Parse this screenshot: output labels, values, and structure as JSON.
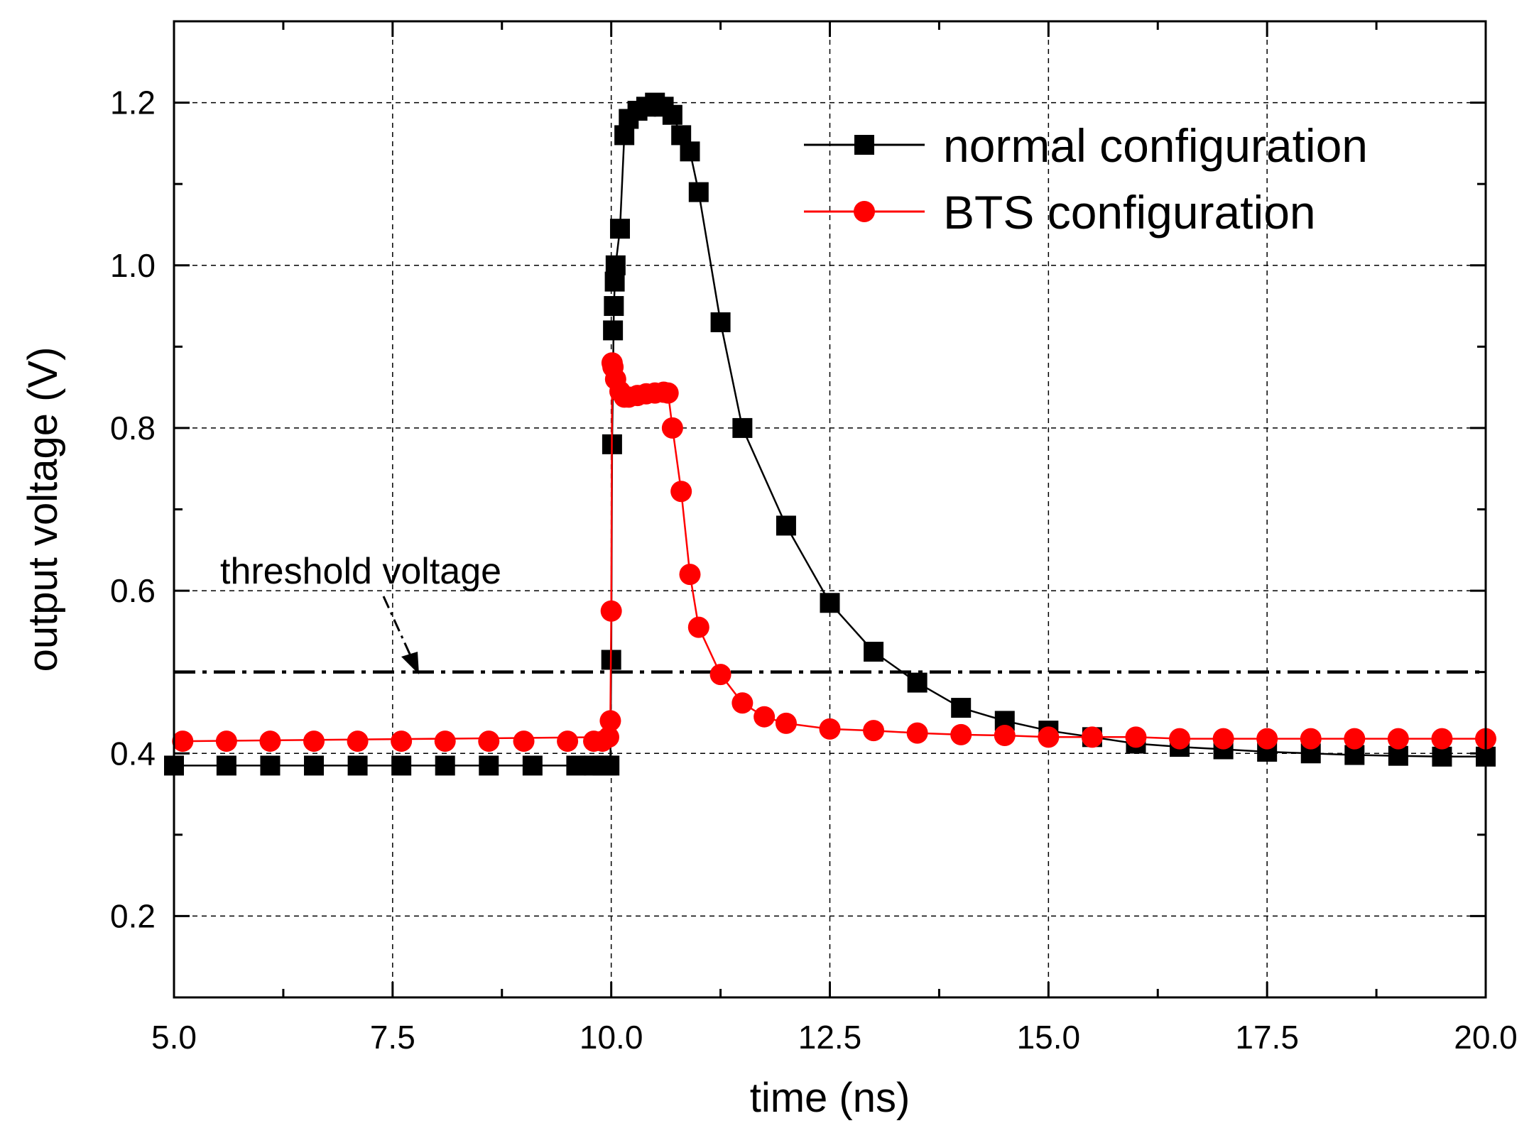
{
  "chart_data": {
    "type": "line",
    "xlabel": "time (ns)",
    "ylabel": "output voltage (V)",
    "xlim": [
      5.0,
      20.0
    ],
    "ylim": [
      0.1,
      1.3
    ],
    "xticks": [
      5.0,
      7.5,
      10.0,
      12.5,
      15.0,
      17.5,
      20.0
    ],
    "xtick_labels": [
      "5.0",
      "7.5",
      "10.0",
      "12.5",
      "15.0",
      "17.5",
      "20.0"
    ],
    "yticks": [
      0.2,
      0.4,
      0.6,
      0.8,
      1.0,
      1.2
    ],
    "ytick_labels": [
      "0.2",
      "0.4",
      "0.6",
      "0.8",
      "1.0",
      "1.2"
    ],
    "grid": true,
    "legend_position": "top-right",
    "series": [
      {
        "name": "normal configuration",
        "color": "#000000",
        "marker": "square",
        "x": [
          5.0,
          5.6,
          6.1,
          6.6,
          7.1,
          7.6,
          8.1,
          8.6,
          9.1,
          9.6,
          9.8,
          9.9,
          9.95,
          9.98,
          10.0,
          10.01,
          10.02,
          10.03,
          10.04,
          10.05,
          10.1,
          10.15,
          10.2,
          10.3,
          10.4,
          10.5,
          10.6,
          10.7,
          10.8,
          10.9,
          11.0,
          11.25,
          11.5,
          12.0,
          12.5,
          13.0,
          13.5,
          14.0,
          14.5,
          15.0,
          15.5,
          16.0,
          16.5,
          17.0,
          17.5,
          18.0,
          18.5,
          19.0,
          19.5,
          20.0
        ],
        "y": [
          0.385,
          0.385,
          0.385,
          0.385,
          0.385,
          0.385,
          0.385,
          0.385,
          0.385,
          0.385,
          0.385,
          0.385,
          0.385,
          0.385,
          0.515,
          0.78,
          0.92,
          0.95,
          0.98,
          1.0,
          1.045,
          1.16,
          1.18,
          1.19,
          1.195,
          1.2,
          1.195,
          1.185,
          1.16,
          1.14,
          1.09,
          0.93,
          0.8,
          0.68,
          0.585,
          0.525,
          0.487,
          0.456,
          0.44,
          0.428,
          0.42,
          0.412,
          0.408,
          0.405,
          0.402,
          0.4,
          0.398,
          0.397,
          0.396,
          0.396
        ],
        "smooth_x": [
          5.0,
          9.99,
          10.0,
          10.01,
          10.03,
          10.05,
          10.1,
          10.15,
          10.2,
          10.3,
          10.4,
          10.5,
          10.6,
          10.7,
          10.8,
          10.9,
          11.0,
          11.25,
          11.5,
          12.0,
          12.5,
          13.0,
          13.5,
          14.0,
          14.5,
          15.0,
          15.5,
          16.0,
          16.5,
          17.0,
          17.5,
          18.0,
          18.5,
          19.0,
          19.5,
          20.0
        ],
        "smooth_y": [
          0.385,
          0.385,
          0.515,
          0.78,
          0.95,
          1.0,
          1.045,
          1.16,
          1.18,
          1.19,
          1.195,
          1.2,
          1.195,
          1.185,
          1.16,
          1.14,
          1.09,
          0.93,
          0.8,
          0.68,
          0.585,
          0.525,
          0.487,
          0.456,
          0.44,
          0.428,
          0.42,
          0.412,
          0.408,
          0.405,
          0.402,
          0.4,
          0.398,
          0.397,
          0.396,
          0.396
        ]
      },
      {
        "name": "BTS configuration",
        "color": "#ff0000",
        "marker": "circle",
        "x": [
          5.1,
          5.6,
          6.1,
          6.6,
          7.1,
          7.6,
          8.1,
          8.6,
          9.0,
          9.5,
          9.8,
          9.9,
          9.97,
          9.99,
          10.0,
          10.01,
          10.02,
          10.05,
          10.1,
          10.15,
          10.2,
          10.3,
          10.4,
          10.5,
          10.6,
          10.65,
          10.7,
          10.8,
          10.9,
          11.0,
          11.25,
          11.5,
          11.75,
          12.0,
          12.5,
          13.0,
          13.5,
          14.0,
          14.5,
          15.0,
          15.5,
          16.0,
          16.5,
          17.0,
          17.5,
          18.0,
          18.5,
          19.0,
          19.5,
          20.0
        ],
        "y": [
          0.415,
          0.415,
          0.415,
          0.415,
          0.415,
          0.415,
          0.415,
          0.415,
          0.415,
          0.415,
          0.415,
          0.415,
          0.42,
          0.44,
          0.575,
          0.88,
          0.875,
          0.86,
          0.845,
          0.838,
          0.838,
          0.84,
          0.842,
          0.843,
          0.844,
          0.843,
          0.8,
          0.722,
          0.62,
          0.555,
          0.497,
          0.462,
          0.445,
          0.437,
          0.43,
          0.428,
          0.425,
          0.423,
          0.422,
          0.42,
          0.42,
          0.42,
          0.418,
          0.418,
          0.418,
          0.418,
          0.418,
          0.418,
          0.418,
          0.418
        ],
        "smooth_x": [
          5.1,
          9.97,
          9.99,
          10.0,
          10.01,
          10.03,
          10.1,
          10.2,
          10.3,
          10.4,
          10.5,
          10.6,
          10.65,
          10.7,
          10.8,
          10.9,
          11.0,
          11.25,
          11.5,
          11.75,
          12.0,
          12.5,
          13.0,
          13.5,
          14.0,
          14.5,
          15.0,
          15.5,
          16.0,
          16.5,
          17.0,
          17.5,
          18.0,
          18.5,
          19.0,
          19.5,
          20.0
        ],
        "smooth_y": [
          0.415,
          0.42,
          0.44,
          0.575,
          0.88,
          0.86,
          0.845,
          0.838,
          0.84,
          0.842,
          0.843,
          0.844,
          0.843,
          0.8,
          0.722,
          0.62,
          0.555,
          0.497,
          0.462,
          0.445,
          0.437,
          0.43,
          0.428,
          0.425,
          0.423,
          0.422,
          0.42,
          0.42,
          0.42,
          0.418,
          0.418,
          0.418,
          0.418,
          0.418,
          0.418,
          0.418,
          0.418
        ]
      }
    ],
    "threshold": {
      "label": "threshold voltage",
      "y": 0.5,
      "line_style": "dash-dot",
      "color": "#000000"
    },
    "annotation": {
      "text": "threshold voltage",
      "arrow_to": [
        7.75,
        0.5
      ]
    }
  }
}
